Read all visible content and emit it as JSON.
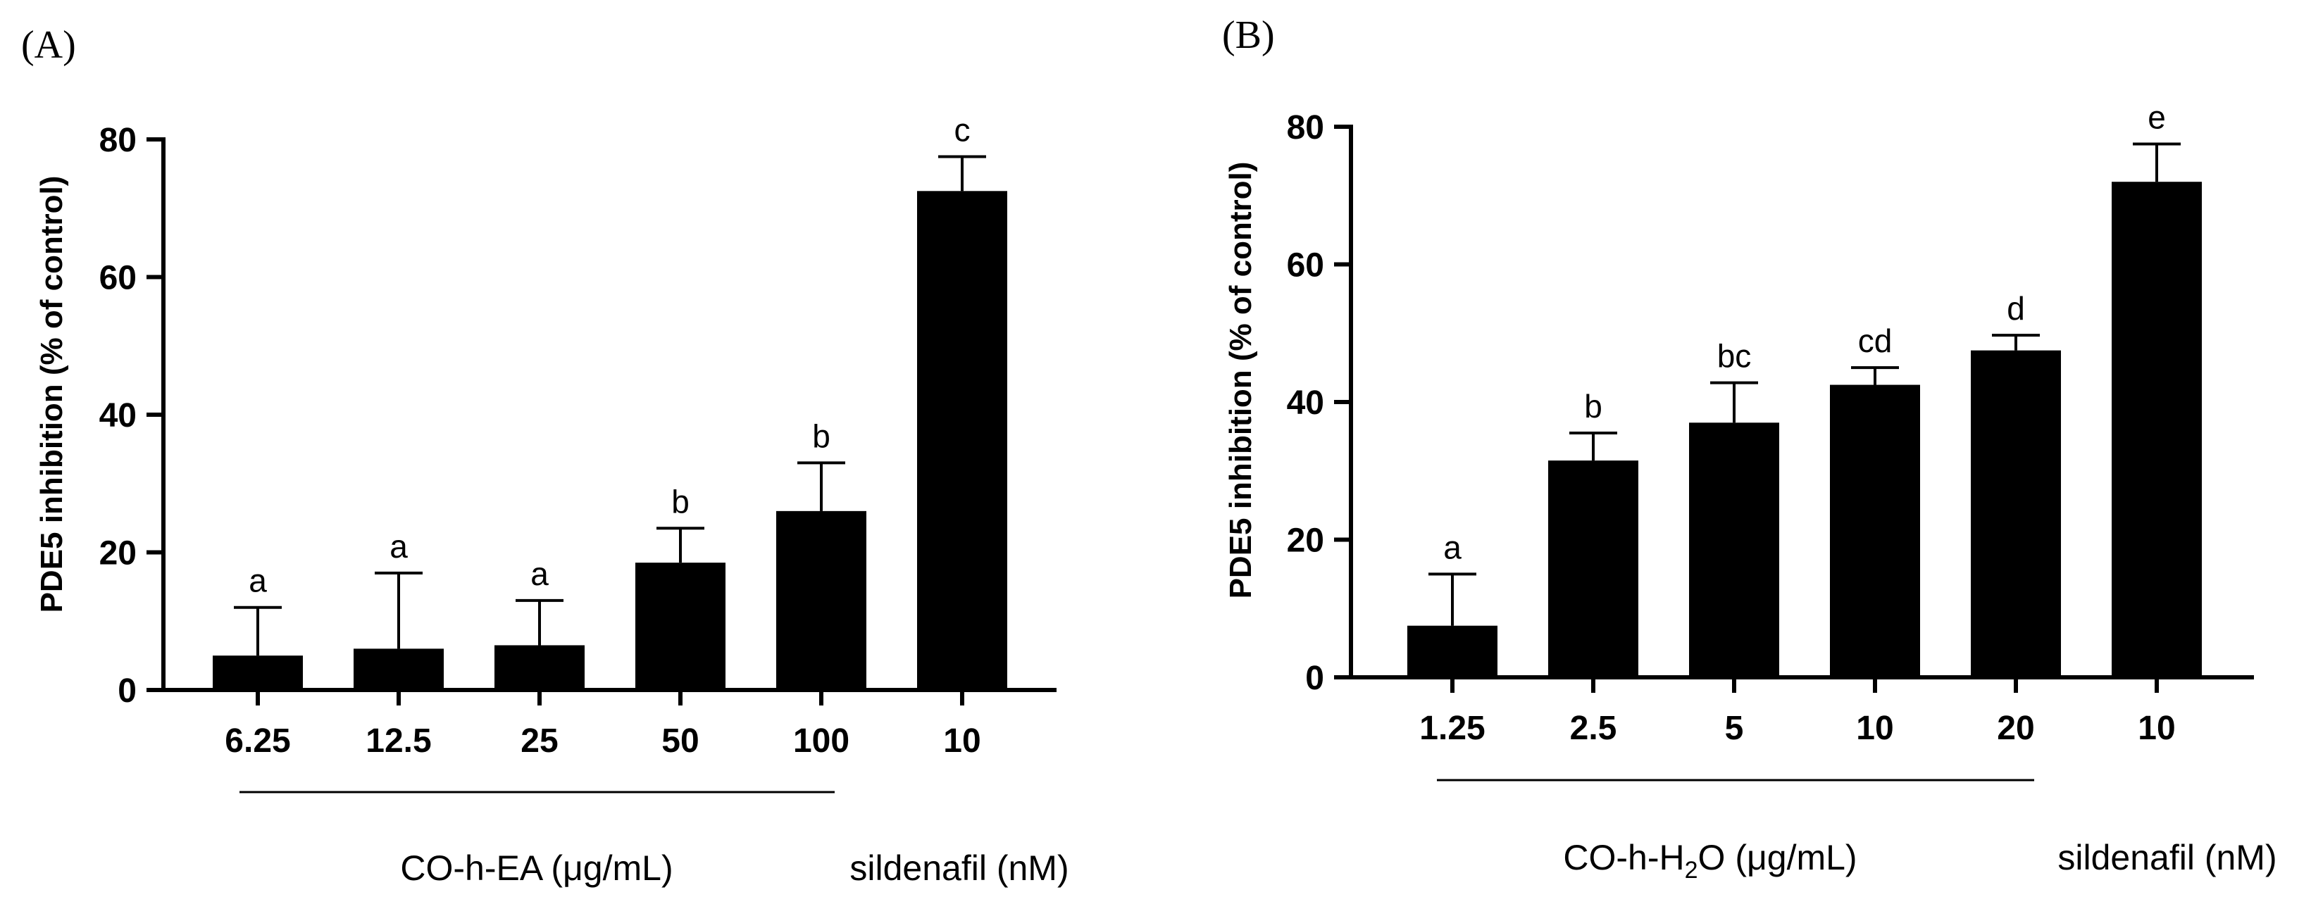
{
  "colors": {
    "bar": "#000000",
    "axis": "#000000",
    "background": "#ffffff"
  },
  "chart_data": [
    {
      "type": "bar",
      "panel_label": "(A)",
      "ylabel": "PDE5 inhibition (% of control)",
      "ylim": [
        0,
        80
      ],
      "yticks": [
        "0",
        "20",
        "40",
        "60",
        "80"
      ],
      "categories": [
        "6.25",
        "12.5",
        "25",
        "50",
        "100",
        "10"
      ],
      "values": [
        5,
        6,
        6.5,
        18.5,
        26,
        72.5
      ],
      "errors": [
        7,
        11,
        6.5,
        5,
        7,
        5
      ],
      "significance": [
        "a",
        "a",
        "a",
        "b",
        "b",
        "c"
      ],
      "group_label": "CO-h-EA (μg/mL)",
      "control_label": "sildenafil (nM)"
    },
    {
      "type": "bar",
      "panel_label": "(B)",
      "ylabel": "PDE5 inhibition (% of control)",
      "ylim": [
        0,
        80
      ],
      "yticks": [
        "0",
        "20",
        "40",
        "60",
        "80"
      ],
      "categories": [
        "1.25",
        "2.5",
        "5",
        "10",
        "20",
        "10"
      ],
      "values": [
        7.5,
        31.5,
        37,
        42.5,
        47.5,
        72
      ],
      "errors": [
        7.5,
        4,
        5.8,
        2.5,
        2.2,
        5.5
      ],
      "significance": [
        "a",
        "b",
        "bc",
        "cd",
        "d",
        "e"
      ],
      "group_label_prefix": "CO-h-H",
      "group_label_sub": "2",
      "group_label_suffix": "O (μg/mL)",
      "control_label": "sildenafil (nM)"
    }
  ]
}
